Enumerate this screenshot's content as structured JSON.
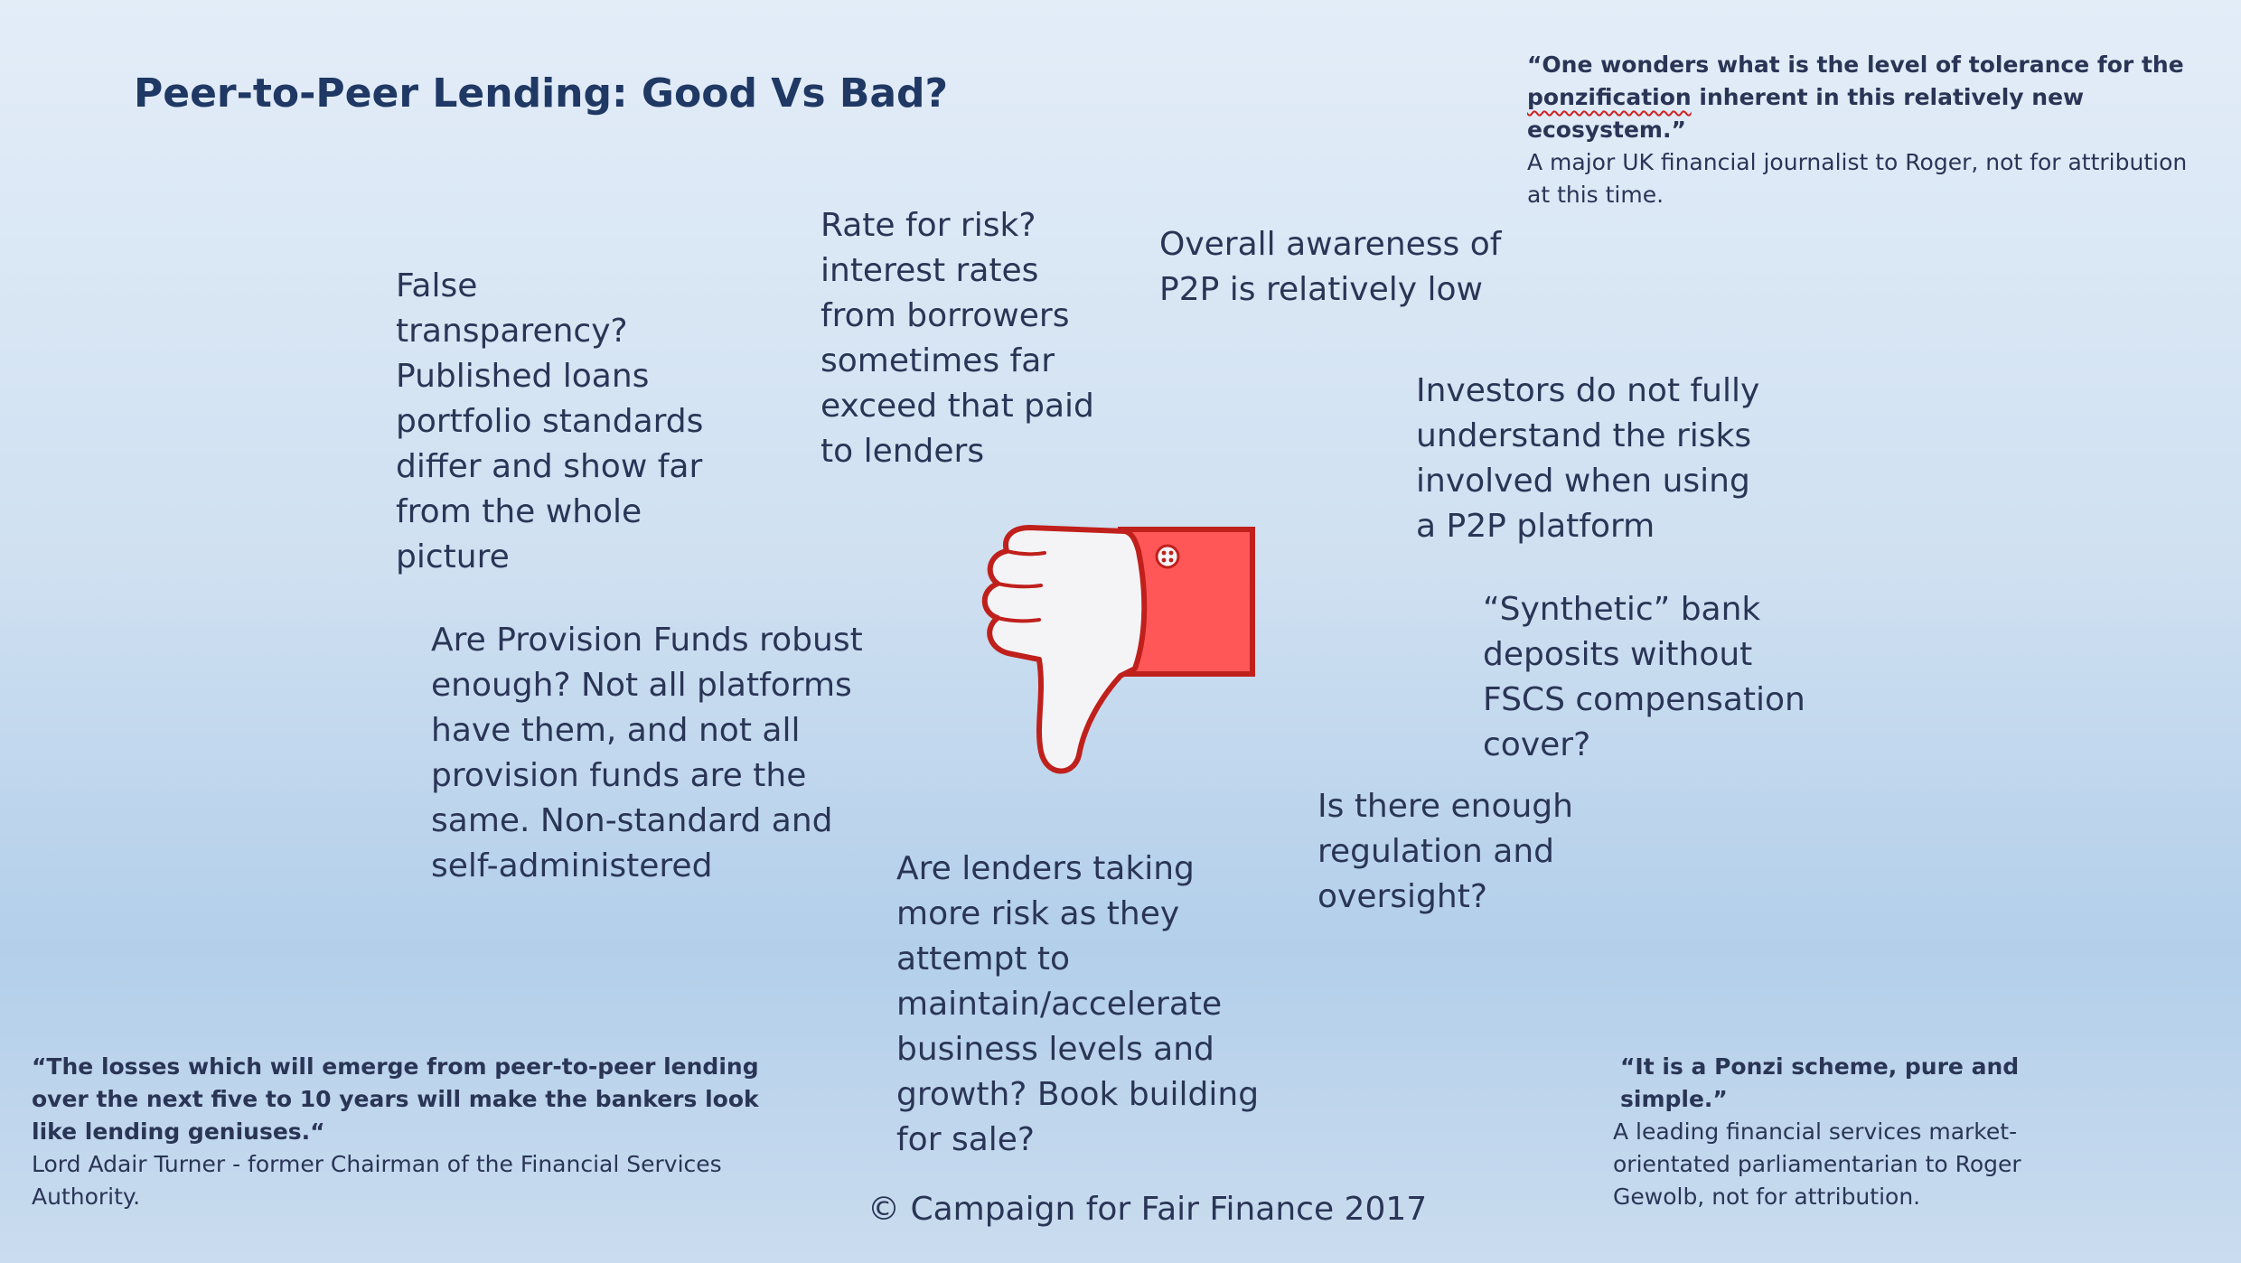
{
  "title": "Peer-to-Peer Lending: Good Vs Bad?",
  "quotes": {
    "top_right": {
      "line1": "“One wonders what is the level of tolerance for the",
      "word_flagged": "ponzification",
      "line2_rest": " inherent in this relatively new ecosystem.”",
      "source": "A major UK financial journalist to Roger, not for attribution at this time."
    },
    "bottom_left": {
      "text": "“The losses which will emerge from peer-to-peer lending over the next five to 10 years will make the bankers look like lending geniuses.“",
      "source": "Lord Adair Turner - former Chairman of the Financial Services Authority."
    },
    "bottom_right": {
      "text": "“It is a Ponzi scheme, pure and simple.”",
      "source": "A leading financial services market-orientated parliamentarian to Roger Gewolb, not for attribution."
    }
  },
  "points": {
    "false_transparency": "False transparency? Published loans portfolio standards differ and show far from the whole picture",
    "rate_for_risk": "Rate for risk? interest rates from borrowers sometimes far exceed that paid to lenders",
    "awareness": "Overall awareness of P2P is relatively low",
    "investors": "Investors do not fully understand the risks involved when using a P2P platform",
    "provision_funds": "Are Provision Funds robust enough? Not all platforms have them, and not all provision funds are the same. Non-standard and self-administered",
    "synthetic": "“Synthetic” bank deposits without FSCS compensation cover?",
    "regulation": "Is there enough regulation and oversight?",
    "lenders_risk": "Are lenders taking more risk as they attempt to maintain/accelerate business levels and growth? Book building for sale?"
  },
  "footer": {
    "copyright": "© Campaign for Fair Finance 2017"
  },
  "icons": {
    "center": "thumbs-down-icon",
    "colors": {
      "cuff": "#ff5757",
      "outline": "#c0201c",
      "hand": "#f4f4f6"
    }
  }
}
